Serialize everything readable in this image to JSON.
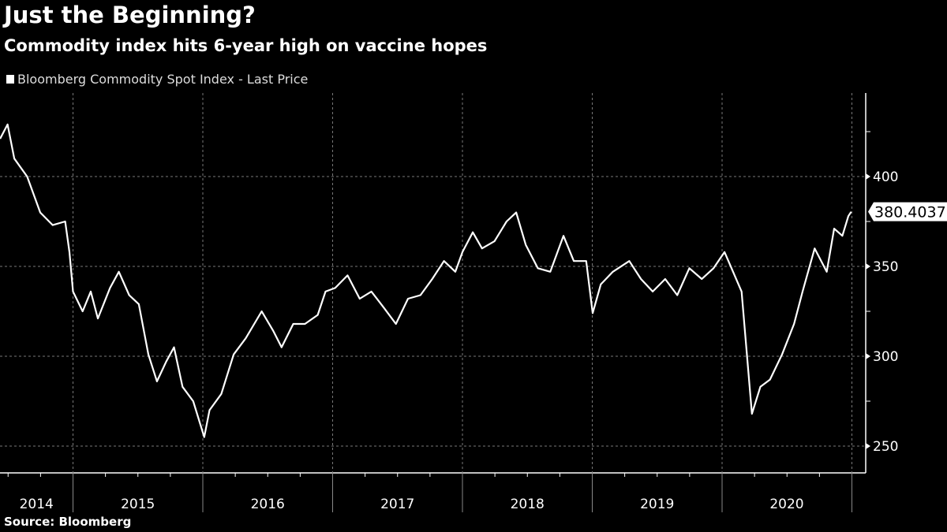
{
  "title": "Just the Beginning?",
  "subtitle": "Commodity index hits 6-year high on vaccine hopes",
  "source": "Source: Bloomberg",
  "colors": {
    "background": "#000000",
    "line": "#ffffff",
    "grid": "#777777"
  },
  "chart_data": {
    "type": "line",
    "title": "Just the Beginning?",
    "subtitle": "Commodity index hits 6-year high on vaccine hopes",
    "legend": {
      "placement": "top-left",
      "entries": [
        "Bloomberg Commodity Spot Index - Last Price"
      ]
    },
    "y_axis": {
      "position": "right",
      "range": [
        235,
        446
      ],
      "ticks": [
        250,
        300,
        350,
        400
      ],
      "tick_labels": [
        "250",
        "300",
        "350",
        "400"
      ]
    },
    "x_axis": {
      "tick_labels": [
        "2014",
        "2015",
        "2016",
        "2017",
        "2018",
        "2019",
        "2020"
      ]
    },
    "grid": true,
    "last_value_label": "380.4037",
    "series": [
      {
        "name": "Bloomberg Commodity Spot Index - Last Price",
        "points": [
          [
            "2014-06-10",
            421
          ],
          [
            "2014-07-01",
            429
          ],
          [
            "2014-07-20",
            410
          ],
          [
            "2014-08-25",
            400
          ],
          [
            "2014-10-01",
            380
          ],
          [
            "2014-11-05",
            373
          ],
          [
            "2014-12-10",
            375
          ],
          [
            "2014-12-22",
            358
          ],
          [
            "2015-01-01",
            336
          ],
          [
            "2015-01-28",
            325
          ],
          [
            "2015-02-20",
            336
          ],
          [
            "2015-03-12",
            321
          ],
          [
            "2015-04-15",
            338
          ],
          [
            "2015-05-10",
            347
          ],
          [
            "2015-06-08",
            334
          ],
          [
            "2015-07-05",
            329
          ],
          [
            "2015-08-01",
            301
          ],
          [
            "2015-08-25",
            286
          ],
          [
            "2015-09-20",
            297
          ],
          [
            "2015-10-12",
            305
          ],
          [
            "2015-11-05",
            283
          ],
          [
            "2015-12-05",
            275
          ],
          [
            "2016-01-05",
            255
          ],
          [
            "2016-01-20",
            270
          ],
          [
            "2016-02-22",
            279
          ],
          [
            "2016-03-28",
            301
          ],
          [
            "2016-05-01",
            310
          ],
          [
            "2016-06-15",
            325
          ],
          [
            "2016-07-18",
            314
          ],
          [
            "2016-08-10",
            305
          ],
          [
            "2016-09-12",
            318
          ],
          [
            "2016-10-15",
            318
          ],
          [
            "2016-11-20",
            323
          ],
          [
            "2016-12-12",
            336
          ],
          [
            "2017-01-08",
            338
          ],
          [
            "2017-02-12",
            345
          ],
          [
            "2017-03-18",
            332
          ],
          [
            "2017-04-20",
            336
          ],
          [
            "2017-05-25",
            327
          ],
          [
            "2017-06-28",
            318
          ],
          [
            "2017-08-01",
            332
          ],
          [
            "2017-09-05",
            334
          ],
          [
            "2017-10-08",
            343
          ],
          [
            "2017-11-10",
            353
          ],
          [
            "2017-12-12",
            347
          ],
          [
            "2018-01-01",
            358
          ],
          [
            "2018-01-30",
            369
          ],
          [
            "2018-02-25",
            360
          ],
          [
            "2018-04-01",
            364
          ],
          [
            "2018-05-05",
            375
          ],
          [
            "2018-06-01",
            380
          ],
          [
            "2018-06-28",
            362
          ],
          [
            "2018-08-01",
            349
          ],
          [
            "2018-09-05",
            347
          ],
          [
            "2018-10-12",
            367
          ],
          [
            "2018-11-10",
            353
          ],
          [
            "2018-12-15",
            353
          ],
          [
            "2019-01-02",
            324
          ],
          [
            "2019-01-25",
            340
          ],
          [
            "2019-02-28",
            347
          ],
          [
            "2019-04-15",
            353
          ],
          [
            "2019-05-18",
            343
          ],
          [
            "2019-06-20",
            336
          ],
          [
            "2019-07-25",
            343
          ],
          [
            "2019-08-28",
            334
          ],
          [
            "2019-10-01",
            349
          ],
          [
            "2019-11-05",
            343
          ],
          [
            "2019-12-08",
            349
          ],
          [
            "2020-01-08",
            358
          ],
          [
            "2020-02-01",
            347
          ],
          [
            "2020-02-25",
            336
          ],
          [
            "2020-03-25",
            268
          ],
          [
            "2020-04-18",
            283
          ],
          [
            "2020-05-15",
            287
          ],
          [
            "2020-06-18",
            301
          ],
          [
            "2020-07-22",
            318
          ],
          [
            "2020-08-15",
            336
          ],
          [
            "2020-09-18",
            360
          ],
          [
            "2020-10-22",
            347
          ],
          [
            "2020-11-12",
            371
          ],
          [
            "2020-12-05",
            367
          ],
          [
            "2020-12-22",
            378
          ],
          [
            "2020-12-30",
            380.4037
          ]
        ]
      }
    ]
  }
}
